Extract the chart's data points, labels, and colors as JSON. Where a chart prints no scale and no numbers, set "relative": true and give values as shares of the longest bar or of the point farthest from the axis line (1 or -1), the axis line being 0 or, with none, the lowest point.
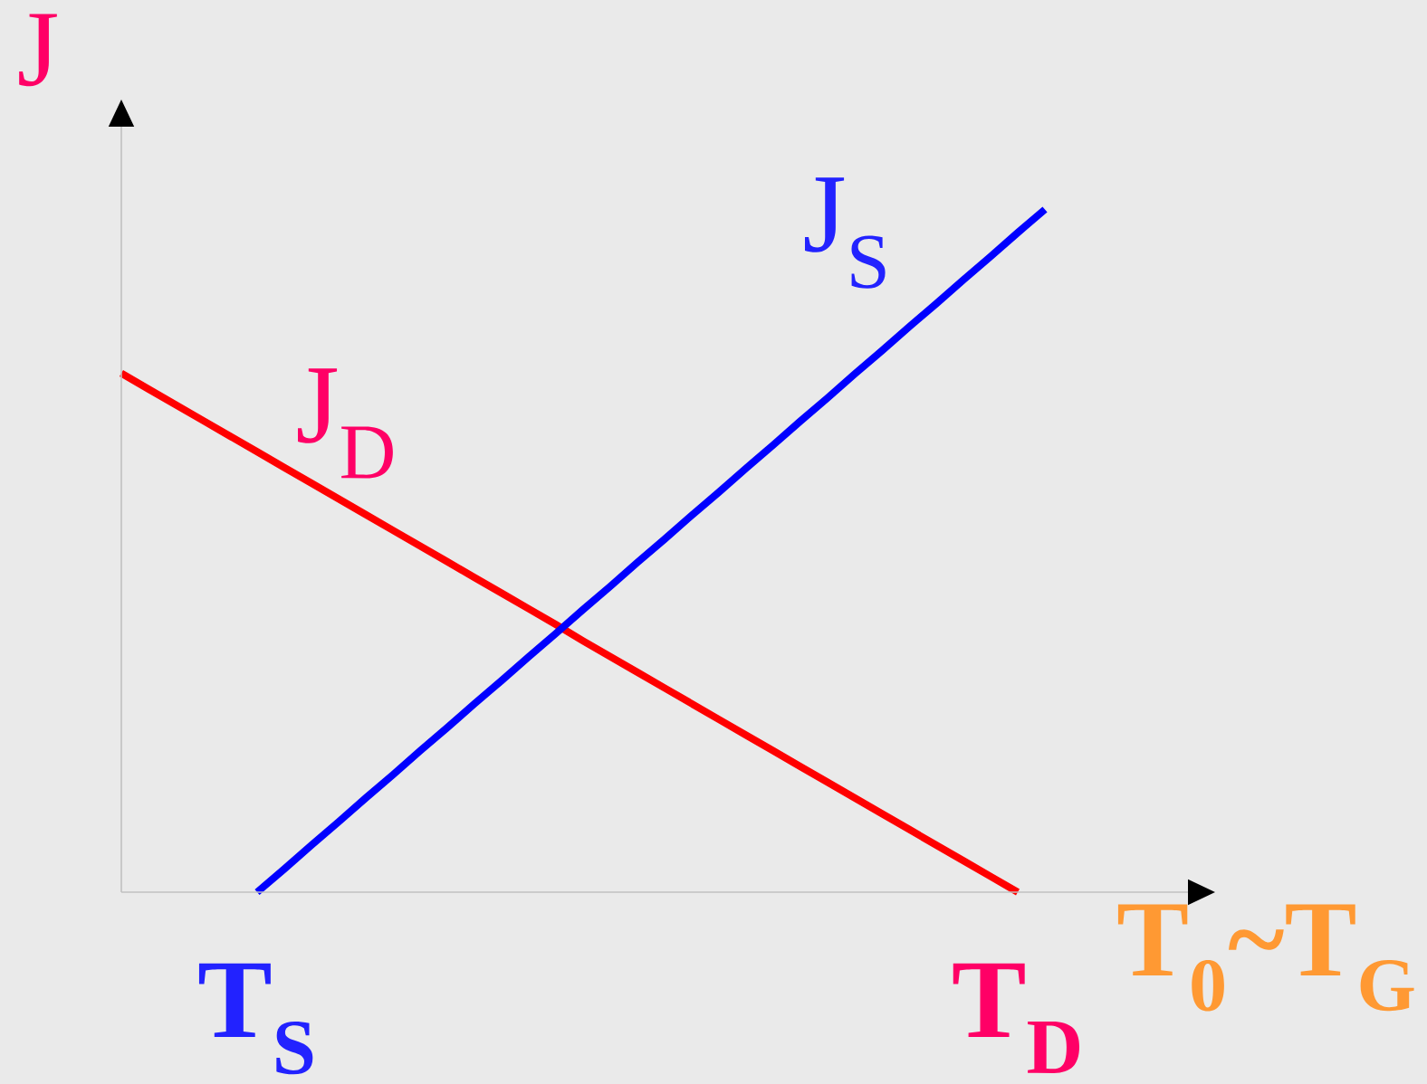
{
  "chart_data": {
    "type": "line",
    "relative": true,
    "ylabel": "J",
    "xlabel": "T$_{0}$~T$_{G}$",
    "categories": [
      null,
      null,
      null,
      null,
      null,
      "T$_{S}$",
      null,
      null,
      null,
      null,
      null,
      null,
      null,
      null,
      null,
      null,
      null,
      null,
      null,
      null,
      null,
      null,
      null,
      null,
      null,
      null,
      null,
      null,
      null,
      null,
      null,
      null,
      null,
      "T$_{D}$",
      null
    ],
    "series": [
      {
        "name": "J$_{D}$",
        "color": "#ff0000",
        "values": [
          0.76,
          0.737,
          0.714,
          0.691,
          0.668,
          0.645,
          0.622,
          0.599,
          0.576,
          0.553,
          0.53,
          0.507,
          0.484,
          0.461,
          0.438,
          0.415,
          0.392,
          0.368,
          0.345,
          0.322,
          0.299,
          0.276,
          0.253,
          0.23,
          0.207,
          0.184,
          0.161,
          0.138,
          0.115,
          0.092,
          0.069,
          0.046,
          0.023,
          0,
          null
        ]
      },
      {
        "name": "J$_{S}$",
        "color": "#0000ff",
        "values": [
          null,
          null,
          null,
          null,
          null,
          0,
          0.034,
          0.069,
          0.103,
          0.138,
          0.172,
          0.207,
          0.241,
          0.276,
          0.31,
          0.345,
          0.379,
          0.414,
          0.448,
          0.483,
          0.517,
          0.552,
          0.586,
          0.621,
          0.655,
          0.69,
          0.724,
          0.759,
          0.793,
          0.828,
          0.862,
          0.897,
          0.931,
          0.966,
          1
        ]
      }
    ]
  }
}
